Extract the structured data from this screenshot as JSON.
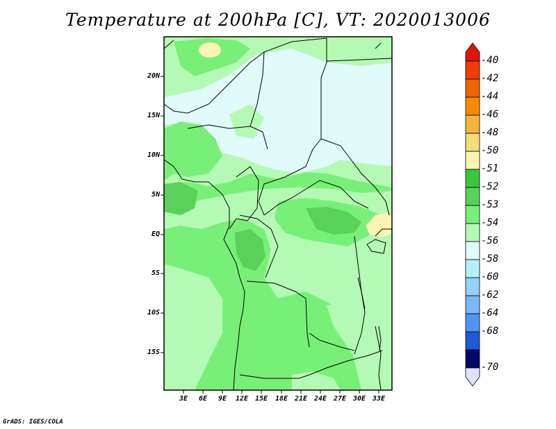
{
  "title": "Temperature at 200hPa [C], VT: 2020013006",
  "credit": "GrADS: IGES/COLA",
  "map": {
    "lon_range": [
      0,
      35
    ],
    "lat_range": [
      -20,
      25
    ],
    "lat_labels": [
      "20N",
      "15N",
      "10N",
      "5N",
      "EQ",
      "5S",
      "10S",
      "15S"
    ],
    "lon_labels": [
      "3E",
      "6E",
      "9E",
      "12E",
      "15E",
      "18E",
      "21E",
      "24E",
      "27E",
      "30E",
      "33E"
    ]
  },
  "colorbar": {
    "levels": [
      "-40",
      "-42",
      "-44",
      "-46",
      "-48",
      "-50",
      "-51",
      "-52",
      "-53",
      "-54",
      "-56",
      "-58",
      "-60",
      "-62",
      "-64",
      "-68",
      "-70"
    ],
    "colors": [
      "#f01400",
      "#f03c00",
      "#f06400",
      "#f58c00",
      "#f5b43c",
      "#f5dc78",
      "#faf5b4",
      "#3cc83c",
      "#5ad25a",
      "#78f078",
      "#b4fab4",
      "#e1fafa",
      "#b4f0fa",
      "#96d2fa",
      "#78b9fa",
      "#5096f0",
      "#3278e6",
      "#1e5ad2",
      "#0a46be",
      "#00288c",
      "#000a64",
      "#e1e1fa"
    ]
  }
}
